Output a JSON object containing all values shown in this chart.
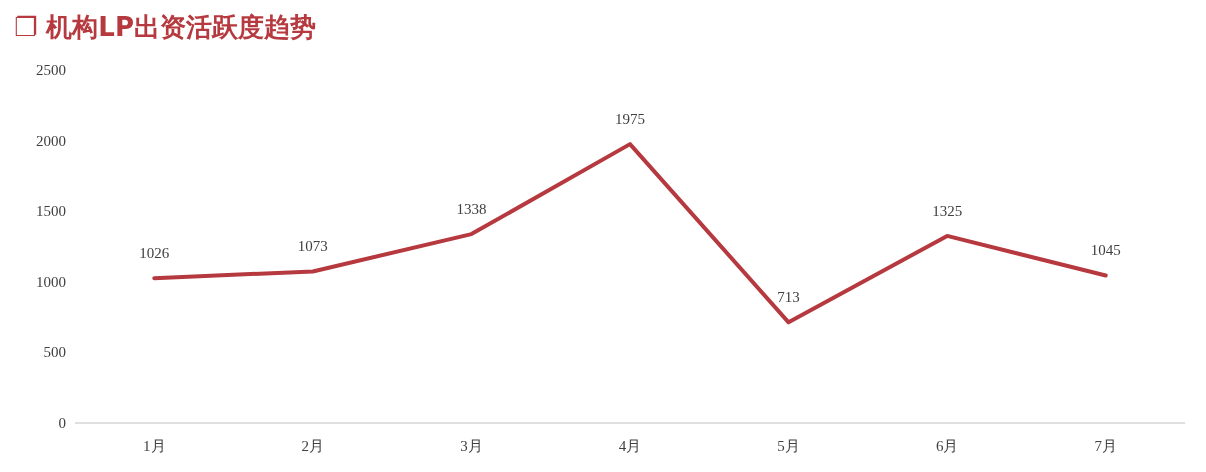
{
  "chart_data": {
    "type": "line",
    "title": "❐ 机构LP出资活跃度趋势",
    "categories": [
      "1月",
      "2月",
      "3月",
      "4月",
      "5月",
      "6月",
      "7月"
    ],
    "series": [
      {
        "color": "#b5393e",
        "values": [
          1026,
          1073,
          1338,
          1975,
          713,
          1325,
          1045
        ]
      }
    ],
    "ylim": [
      0,
      2500
    ],
    "yticks": [
      0,
      500,
      1000,
      1500,
      2000,
      2500
    ],
    "data_labels": true,
    "grid": false,
    "marker": "none",
    "line_style": "solid"
  }
}
